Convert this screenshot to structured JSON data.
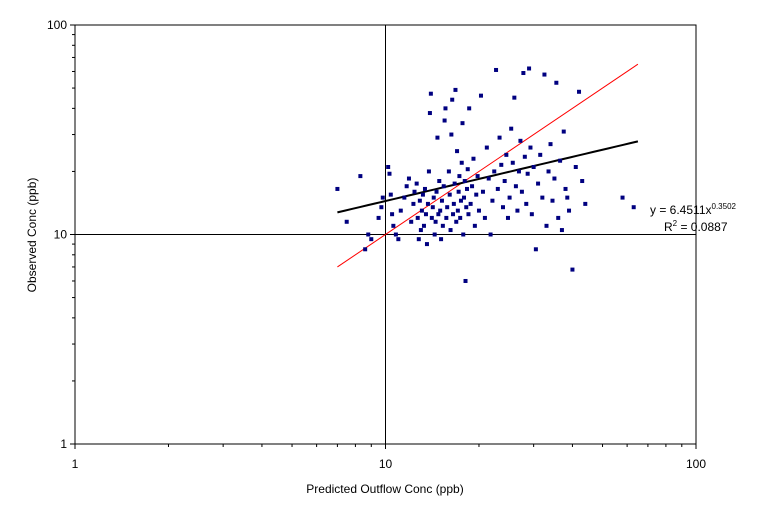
{
  "chart_data": {
    "type": "scatter",
    "xscale": "log",
    "yscale": "log",
    "xlim": [
      1,
      100
    ],
    "ylim": [
      1,
      100
    ],
    "xlabel": "Predicted Outflow Conc (ppb)",
    "ylabel": "Observed Conc (ppb)",
    "x_ticks": [
      "1",
      "10",
      "100"
    ],
    "y_ticks": [
      "1",
      "10",
      "100"
    ],
    "grid": "major gridlines at 10 on both axes",
    "legend": "none",
    "colors": {
      "points": "#000080",
      "trendline": "#000000",
      "identity_line": "#ff0000"
    },
    "trendline": {
      "type": "power",
      "coefficient": 6.4511,
      "exponent": 0.3502,
      "x_range": [
        7,
        65
      ],
      "equation_prefix": "y = 6.4511x",
      "equation_exponent": "0.3502",
      "r2_prefix": "R",
      "r2_exponent": "2",
      "r2_suffix": " = 0.0887"
    },
    "identity_line": {
      "x_range": [
        7,
        65
      ],
      "y_range": [
        7,
        65
      ]
    },
    "points": [
      [
        7,
        16.5
      ],
      [
        7.5,
        11.5
      ],
      [
        8.3,
        19
      ],
      [
        8.6,
        8.5
      ],
      [
        8.8,
        10
      ],
      [
        9,
        9.5
      ],
      [
        9.5,
        12
      ],
      [
        9.7,
        13.5
      ],
      [
        9.8,
        15
      ],
      [
        10.2,
        21
      ],
      [
        10.3,
        19.5
      ],
      [
        10.4,
        15.5
      ],
      [
        10.5,
        12.5
      ],
      [
        10.6,
        11
      ],
      [
        10.8,
        10
      ],
      [
        11,
        9.5
      ],
      [
        11.2,
        13
      ],
      [
        11.5,
        15
      ],
      [
        11.7,
        17
      ],
      [
        11.9,
        18.5
      ],
      [
        12.1,
        11.5
      ],
      [
        12.3,
        14
      ],
      [
        12.4,
        16
      ],
      [
        12.6,
        17.5
      ],
      [
        12.7,
        12
      ],
      [
        12.8,
        9.5
      ],
      [
        12.9,
        14.5
      ],
      [
        13,
        10.5
      ],
      [
        13.1,
        13
      ],
      [
        13.2,
        15.5
      ],
      [
        13.3,
        11
      ],
      [
        13.4,
        16.5
      ],
      [
        13.5,
        12.5
      ],
      [
        13.6,
        9
      ],
      [
        13.7,
        14
      ],
      [
        13.8,
        20
      ],
      [
        13.9,
        38
      ],
      [
        14,
        47
      ],
      [
        14.1,
        12
      ],
      [
        14.2,
        13.5
      ],
      [
        14.3,
        15
      ],
      [
        14.4,
        10
      ],
      [
        14.5,
        11.5
      ],
      [
        14.6,
        16
      ],
      [
        14.7,
        29
      ],
      [
        14.8,
        12.5
      ],
      [
        14.9,
        18
      ],
      [
        15,
        13
      ],
      [
        15.1,
        9.5
      ],
      [
        15.2,
        14.5
      ],
      [
        15.3,
        11
      ],
      [
        15.4,
        17
      ],
      [
        15.5,
        35
      ],
      [
        15.6,
        40
      ],
      [
        15.7,
        12
      ],
      [
        15.8,
        13.5
      ],
      [
        16,
        20
      ],
      [
        16.1,
        15.5
      ],
      [
        16.2,
        10.5
      ],
      [
        16.3,
        30
      ],
      [
        16.4,
        44
      ],
      [
        16.5,
        12.5
      ],
      [
        16.6,
        14
      ],
      [
        16.7,
        17.5
      ],
      [
        16.8,
        49
      ],
      [
        16.9,
        11.5
      ],
      [
        17,
        25
      ],
      [
        17.1,
        13
      ],
      [
        17.2,
        16
      ],
      [
        17.3,
        19
      ],
      [
        17.4,
        12
      ],
      [
        17.5,
        14.5
      ],
      [
        17.6,
        22
      ],
      [
        17.7,
        34
      ],
      [
        17.8,
        10
      ],
      [
        17.9,
        15
      ],
      [
        18,
        18
      ],
      [
        18.1,
        6
      ],
      [
        18.2,
        13.5
      ],
      [
        18.3,
        16.5
      ],
      [
        18.4,
        20.5
      ],
      [
        18.5,
        12.5
      ],
      [
        18.6,
        40
      ],
      [
        18.8,
        14
      ],
      [
        19,
        17
      ],
      [
        19.2,
        23
      ],
      [
        19.4,
        11
      ],
      [
        19.6,
        15.5
      ],
      [
        19.8,
        19
      ],
      [
        20,
        13
      ],
      [
        20.3,
        46
      ],
      [
        20.6,
        16
      ],
      [
        20.9,
        12
      ],
      [
        21.2,
        26
      ],
      [
        21.5,
        18.5
      ],
      [
        21.8,
        10
      ],
      [
        22.1,
        14.5
      ],
      [
        22.4,
        20
      ],
      [
        22.7,
        61
      ],
      [
        23,
        16.5
      ],
      [
        23.3,
        29
      ],
      [
        23.6,
        21.5
      ],
      [
        23.9,
        13.5
      ],
      [
        24.2,
        18
      ],
      [
        24.5,
        24
      ],
      [
        24.8,
        12
      ],
      [
        25.1,
        15
      ],
      [
        25.4,
        32
      ],
      [
        25.7,
        22
      ],
      [
        26,
        45
      ],
      [
        26.3,
        17
      ],
      [
        26.6,
        13
      ],
      [
        26.9,
        20
      ],
      [
        27.2,
        28
      ],
      [
        27.5,
        16
      ],
      [
        27.8,
        59
      ],
      [
        28.1,
        23.5
      ],
      [
        28.4,
        14
      ],
      [
        28.7,
        19.5
      ],
      [
        29,
        62
      ],
      [
        29.3,
        26
      ],
      [
        29.6,
        12.5
      ],
      [
        30,
        21
      ],
      [
        30.5,
        8.5
      ],
      [
        31,
        17.5
      ],
      [
        31.5,
        24
      ],
      [
        32,
        15
      ],
      [
        32.5,
        58
      ],
      [
        33,
        11
      ],
      [
        33.5,
        20
      ],
      [
        34,
        27
      ],
      [
        34.5,
        14.5
      ],
      [
        35,
        18.5
      ],
      [
        35.5,
        53
      ],
      [
        36,
        12
      ],
      [
        36.5,
        22.5
      ],
      [
        37,
        10.5
      ],
      [
        37.5,
        31
      ],
      [
        38,
        16.5
      ],
      [
        38.5,
        15
      ],
      [
        39,
        13
      ],
      [
        40,
        6.8
      ],
      [
        41,
        21
      ],
      [
        42,
        48
      ],
      [
        43,
        18
      ],
      [
        44,
        14
      ],
      [
        58,
        15
      ],
      [
        63,
        13.5
      ]
    ]
  }
}
